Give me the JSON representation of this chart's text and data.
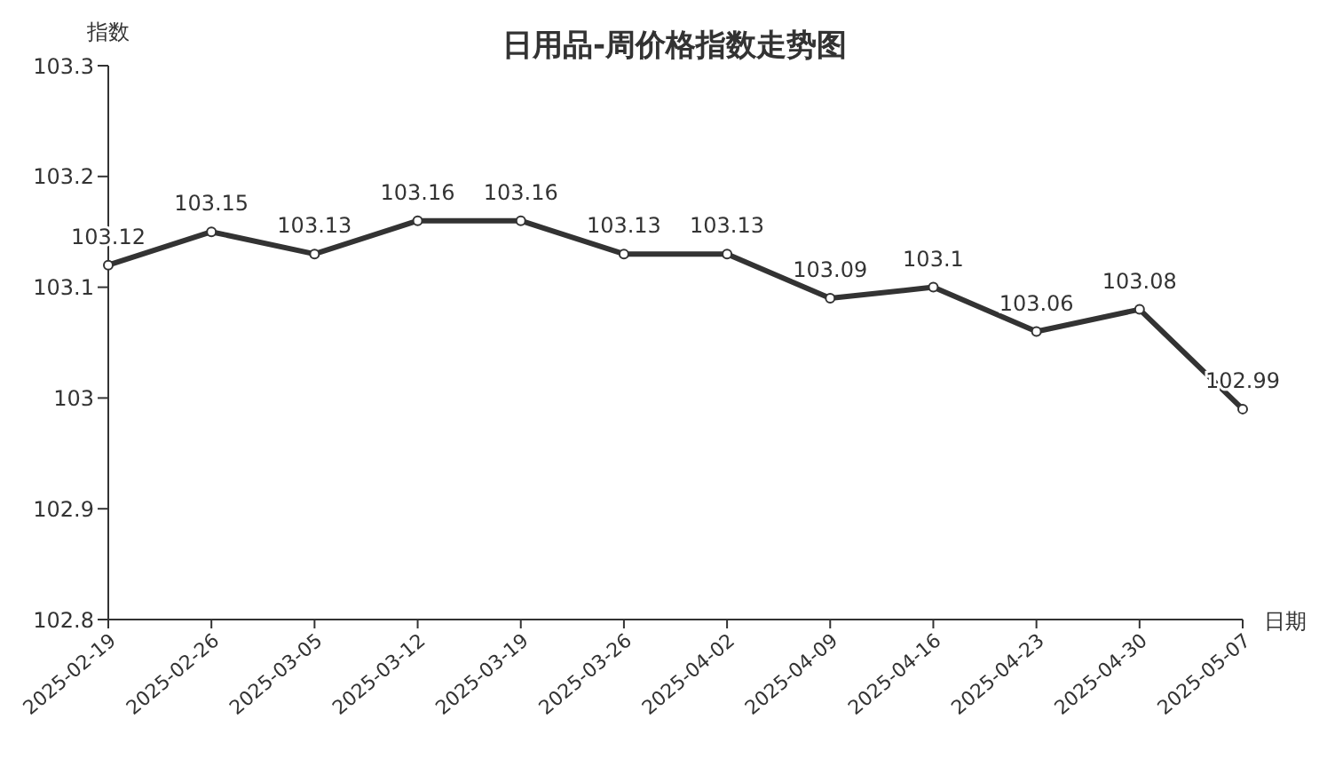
{
  "chart_data": {
    "type": "line",
    "title": "日用品-周价格指数走势图",
    "xlabel": "日期",
    "ylabel": "指数",
    "categories": [
      "2025-02-19",
      "2025-02-26",
      "2025-03-05",
      "2025-03-12",
      "2025-03-19",
      "2025-03-26",
      "2025-04-02",
      "2025-04-09",
      "2025-04-16",
      "2025-04-23",
      "2025-04-30",
      "2025-05-07"
    ],
    "series": [
      {
        "color": "#333333",
        "values": [
          103.12,
          103.15,
          103.13,
          103.16,
          103.16,
          103.13,
          103.13,
          103.09,
          103.1,
          103.06,
          103.08,
          102.99
        ]
      }
    ],
    "ylim": [
      102.8,
      103.3
    ],
    "yticks": [
      102.8,
      102.9,
      103,
      103.1,
      103.2,
      103.3
    ],
    "data_labels": true,
    "marker": "circle",
    "line_style": "solid",
    "grid": false,
    "legend": false
  }
}
